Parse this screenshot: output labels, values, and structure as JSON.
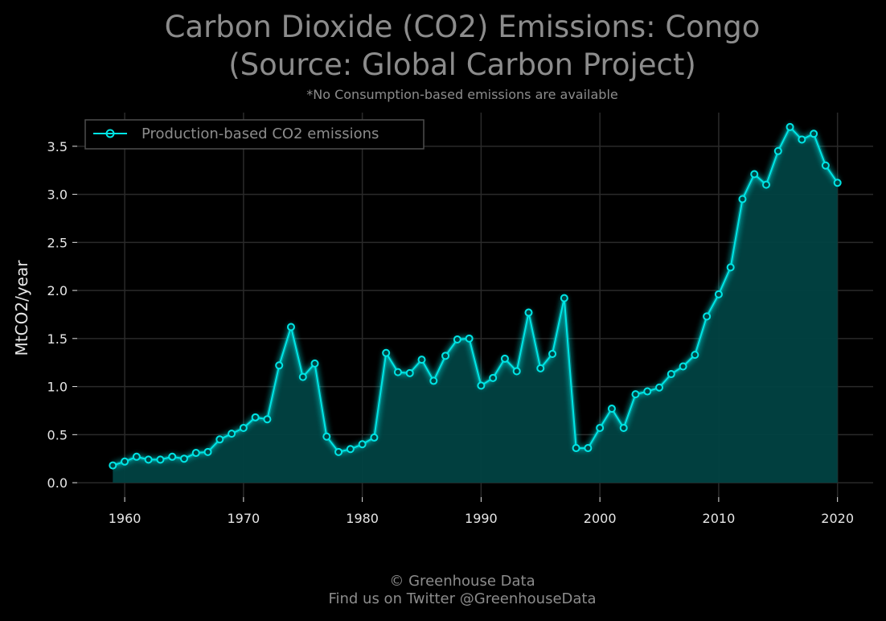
{
  "chart_data": {
    "type": "area",
    "title_line1": "Carbon Dioxide (CO2) Emissions: Congo",
    "title_line2": "(Source: Global Carbon Project)",
    "subtitle": "*No Consumption-based emissions are available",
    "xlabel": "",
    "ylabel": "MtCO2/year",
    "xlim": [
      1956,
      2023
    ],
    "ylim": [
      -0.15,
      3.85
    ],
    "x_ticks": [
      1960,
      1970,
      1980,
      1990,
      2000,
      2010,
      2020
    ],
    "y_ticks": [
      "0.0",
      "0.5",
      "1.0",
      "1.5",
      "2.0",
      "2.5",
      "3.0",
      "3.5"
    ],
    "grid": true,
    "legend_position": "top-left",
    "series": [
      {
        "name": "Production-based CO2 emissions",
        "color": "#00e5e5",
        "x": [
          1959,
          1960,
          1961,
          1962,
          1963,
          1964,
          1965,
          1966,
          1967,
          1968,
          1969,
          1970,
          1971,
          1972,
          1973,
          1974,
          1975,
          1976,
          1977,
          1978,
          1979,
          1980,
          1981,
          1982,
          1983,
          1984,
          1985,
          1986,
          1987,
          1988,
          1989,
          1990,
          1991,
          1992,
          1993,
          1994,
          1995,
          1996,
          1997,
          1998,
          1999,
          2000,
          2001,
          2002,
          2003,
          2004,
          2005,
          2006,
          2007,
          2008,
          2009,
          2010,
          2011,
          2012,
          2013,
          2014,
          2015,
          2016,
          2017,
          2018,
          2019,
          2020
        ],
        "y": [
          0.18,
          0.22,
          0.27,
          0.24,
          0.24,
          0.27,
          0.25,
          0.31,
          0.32,
          0.45,
          0.51,
          0.57,
          0.68,
          0.66,
          1.22,
          1.62,
          1.1,
          1.24,
          0.48,
          0.32,
          0.35,
          0.4,
          0.47,
          1.35,
          1.15,
          1.14,
          1.28,
          1.06,
          1.32,
          1.49,
          1.5,
          1.01,
          1.09,
          1.29,
          1.16,
          1.77,
          1.19,
          1.34,
          1.92,
          0.36,
          0.36,
          0.57,
          0.77,
          0.57,
          0.92,
          0.95,
          0.99,
          1.13,
          1.21,
          1.33,
          1.73,
          1.96,
          2.24,
          2.95,
          3.21,
          3.1,
          3.45,
          3.7,
          3.57,
          3.63,
          3.3,
          3.12
        ]
      }
    ]
  },
  "footer": {
    "line1": "© Greenhouse Data",
    "line2": "Find us on Twitter @GreenhouseData"
  },
  "colors": {
    "background": "#000000",
    "grid": "#2a2a2a",
    "area_fill": "#014242",
    "line": "#00e5e5",
    "text_muted": "#8c8c8c",
    "tick_text": "#e6e6e6"
  }
}
